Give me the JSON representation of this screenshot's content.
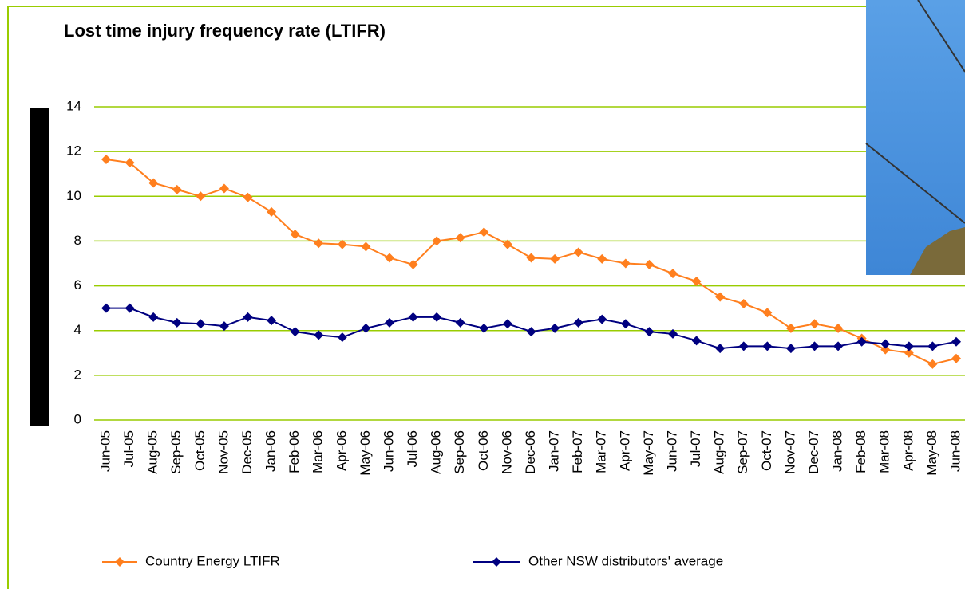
{
  "chart_data": {
    "type": "line",
    "title": "Lost time injury frequency rate (LTIFR)",
    "categories": [
      "Jun-05",
      "Jul-05",
      "Aug-05",
      "Sep-05",
      "Oct-05",
      "Nov-05",
      "Dec-05",
      "Jan-06",
      "Feb-06",
      "Mar-06",
      "Apr-06",
      "May-06",
      "Jun-06",
      "Jul-06",
      "Aug-06",
      "Sep-06",
      "Oct-06",
      "Nov-06",
      "Dec-06",
      "Jan-07",
      "Feb-07",
      "Mar-07",
      "Apr-07",
      "May-07",
      "Jun-07",
      "Jul-07",
      "Aug-07",
      "Sep-07",
      "Oct-07",
      "Nov-07",
      "Dec-07",
      "Jan-08",
      "Feb-08",
      "Mar-08",
      "Apr-08",
      "May-08",
      "Jun-08"
    ],
    "series": [
      {
        "name": "Country Energy LTIFR",
        "color": "#ff7f1e",
        "values": [
          11.65,
          11.5,
          10.6,
          10.3,
          10.0,
          10.35,
          9.95,
          9.3,
          8.3,
          7.9,
          7.85,
          7.75,
          7.25,
          6.95,
          8.0,
          8.15,
          8.4,
          7.85,
          7.25,
          7.2,
          7.5,
          7.2,
          7.0,
          6.95,
          6.55,
          6.2,
          5.5,
          5.2,
          4.8,
          4.1,
          4.3,
          4.1,
          3.65,
          3.15,
          3.0,
          2.5,
          2.75
        ]
      },
      {
        "name": "Other NSW distributors' average",
        "color": "#000080",
        "values": [
          5.0,
          5.0,
          4.6,
          4.35,
          4.3,
          4.2,
          4.6,
          4.45,
          3.95,
          3.8,
          3.7,
          4.1,
          4.35,
          4.6,
          4.6,
          4.35,
          4.1,
          4.3,
          3.95,
          4.1,
          4.35,
          4.5,
          4.3,
          3.95,
          3.85,
          3.55,
          3.2,
          3.3,
          3.3,
          3.2,
          3.3,
          3.3,
          3.5,
          3.4,
          3.3,
          3.3,
          3.5
        ]
      }
    ],
    "ylim": [
      0,
      14
    ],
    "yticks": [
      0,
      2,
      4,
      6,
      8,
      10,
      12,
      14
    ],
    "grid": true,
    "grid_color": "#99cc00",
    "legend": "bottom"
  }
}
